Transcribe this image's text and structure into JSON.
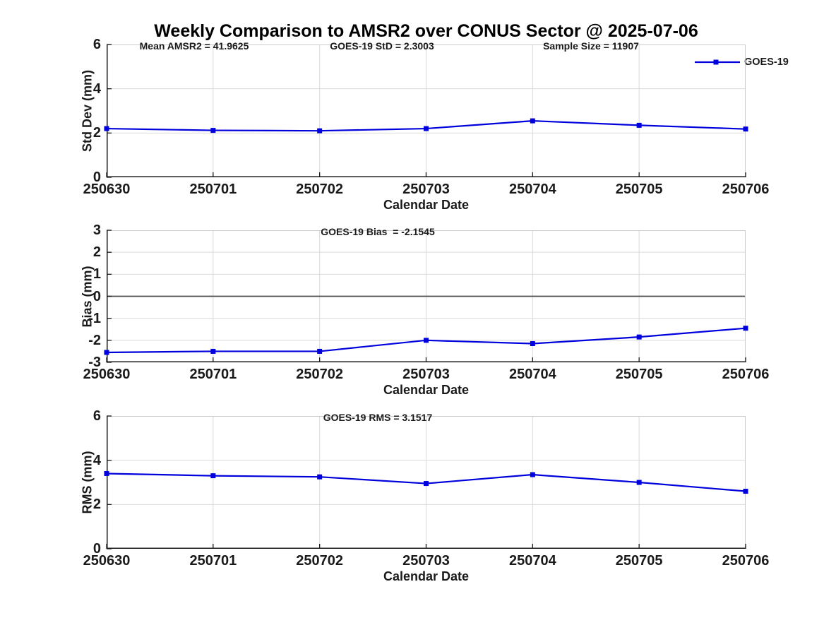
{
  "title": "Weekly Comparison to AMSR2 over CONUS Sector @ 2025-07-06",
  "legend": {
    "label": "GOES-19"
  },
  "colors": {
    "series": "#0000dd",
    "grid": "#d9d9d9",
    "box": "#cccccc",
    "axis": "#1a1a1a",
    "zero_line": "#4d4d4d",
    "text": "#1a1a1a"
  },
  "chart_data": [
    {
      "type": "line",
      "title": "",
      "annotations": [
        "Mean AMSR2 = 41.9625",
        "GOES-19 StD = 2.3003",
        "Sample Size = 11907"
      ],
      "ylabel": "Std Dev (mm)",
      "xlabel": "Calendar Date",
      "categories": [
        "250630",
        "250701",
        "250702",
        "250703",
        "250704",
        "250705",
        "250706"
      ],
      "series": [
        {
          "name": "GOES-19",
          "values": [
            2.2,
            2.12,
            2.1,
            2.2,
            2.55,
            2.35,
            2.18
          ]
        }
      ],
      "ylim": [
        0,
        6
      ],
      "yticks": [
        0,
        2,
        4,
        6
      ],
      "ytick_labels": [
        "0",
        "2",
        "4",
        "6"
      ],
      "grid": true,
      "legend_position": "top-right",
      "marker": "square"
    },
    {
      "type": "line",
      "title": "",
      "annotations": [
        "GOES-19 Bias  = -2.1545"
      ],
      "ylabel": "Bias (mm)",
      "xlabel": "Calendar Date",
      "categories": [
        "250630",
        "250701",
        "250702",
        "250703",
        "250704",
        "250705",
        "250706"
      ],
      "series": [
        {
          "name": "GOES-19",
          "values": [
            -2.55,
            -2.5,
            -2.5,
            -2.0,
            -2.15,
            -1.85,
            -1.45
          ]
        }
      ],
      "ylim": [
        -3,
        3
      ],
      "yticks": [
        -3,
        -2,
        -1,
        0,
        1,
        2,
        3
      ],
      "ytick_labels": [
        "-3",
        "-2",
        "-1",
        "0",
        "1",
        "2",
        "3"
      ],
      "zero_line": true,
      "grid": true,
      "marker": "square"
    },
    {
      "type": "line",
      "title": "",
      "annotations": [
        "GOES-19 RMS = 3.1517"
      ],
      "ylabel": "RMS (mm)",
      "xlabel": "Calendar Date",
      "categories": [
        "250630",
        "250701",
        "250702",
        "250703",
        "250704",
        "250705",
        "250706"
      ],
      "series": [
        {
          "name": "GOES-19",
          "values": [
            3.4,
            3.3,
            3.25,
            2.95,
            3.35,
            3.0,
            2.6
          ]
        }
      ],
      "ylim": [
        0,
        6
      ],
      "yticks": [
        0,
        2,
        4,
        6
      ],
      "ytick_labels": [
        "0",
        "2",
        "4",
        "6"
      ],
      "grid": true,
      "marker": "square"
    }
  ]
}
